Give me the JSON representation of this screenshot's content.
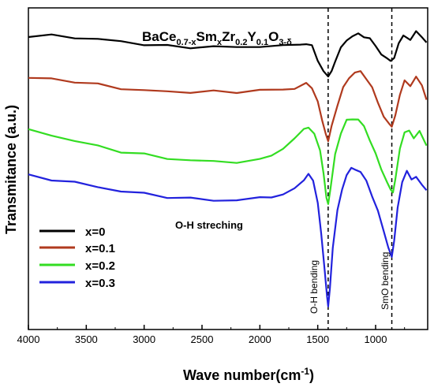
{
  "chart_data": {
    "type": "line",
    "title_main": "BaCe",
    "title_sub1": "0.7-x",
    "title_mid1": "Sm",
    "title_sub2": "x",
    "title_mid2": "Zr",
    "title_sub3": "0.2",
    "title_mid3": "Y",
    "title_sub4": "0.1",
    "title_mid4": "O",
    "title_sub5": "3-δ",
    "xlabel": "Wave number(cm",
    "xlabel_sup": "-1",
    "xlabel_end": ")",
    "ylabel": "Transmitance (a.u.)",
    "xlim": [
      4000,
      550
    ],
    "x_reversed": true,
    "yticks_shown": false,
    "xticks": [
      "4000",
      "3500",
      "3000",
      "2500",
      "2000",
      "1500",
      "1000"
    ],
    "xtick_values": [
      4000,
      3500,
      3000,
      2500,
      2000,
      1500,
      1000
    ],
    "legend_position": "left-middle",
    "annotations": [
      {
        "text": "O-H streching",
        "x": 2500
      },
      {
        "text": "O-H bending",
        "x": 1410
      },
      {
        "text": "SmO bending",
        "x": 860
      }
    ],
    "reference_lines": [
      1410,
      860
    ],
    "series": [
      {
        "name": "x=0",
        "color": "#000000",
        "points": [
          [
            4000,
            3.9
          ],
          [
            3800,
            3.9
          ],
          [
            3600,
            3.88
          ],
          [
            3400,
            3.85
          ],
          [
            3200,
            3.82
          ],
          [
            3000,
            3.78
          ],
          [
            2800,
            3.75
          ],
          [
            2600,
            3.74
          ],
          [
            2400,
            3.74
          ],
          [
            2200,
            3.74
          ],
          [
            2000,
            3.75
          ],
          [
            1800,
            3.75
          ],
          [
            1650,
            3.76
          ],
          [
            1600,
            3.8
          ],
          [
            1550,
            3.75
          ],
          [
            1500,
            3.55
          ],
          [
            1450,
            3.4
          ],
          [
            1410,
            3.3
          ],
          [
            1380,
            3.4
          ],
          [
            1350,
            3.55
          ],
          [
            1300,
            3.72
          ],
          [
            1250,
            3.84
          ],
          [
            1200,
            3.9
          ],
          [
            1150,
            3.92
          ],
          [
            1100,
            3.9
          ],
          [
            1050,
            3.85
          ],
          [
            1000,
            3.76
          ],
          [
            950,
            3.64
          ],
          [
            900,
            3.56
          ],
          [
            870,
            3.55
          ],
          [
            840,
            3.6
          ],
          [
            800,
            3.78
          ],
          [
            760,
            3.9
          ],
          [
            700,
            3.85
          ],
          [
            650,
            3.95
          ],
          [
            600,
            3.9
          ],
          [
            560,
            3.8
          ]
        ]
      },
      {
        "name": "x=0.1",
        "color": "#b03a1e",
        "points": [
          [
            4000,
            3.3
          ],
          [
            3800,
            3.28
          ],
          [
            3600,
            3.25
          ],
          [
            3400,
            3.2
          ],
          [
            3200,
            3.15
          ],
          [
            3000,
            3.12
          ],
          [
            2800,
            3.1
          ],
          [
            2600,
            3.1
          ],
          [
            2400,
            3.1
          ],
          [
            2200,
            3.1
          ],
          [
            2000,
            3.12
          ],
          [
            1800,
            3.13
          ],
          [
            1700,
            3.16
          ],
          [
            1600,
            3.24
          ],
          [
            1550,
            3.15
          ],
          [
            1500,
            2.95
          ],
          [
            1460,
            2.7
          ],
          [
            1430,
            2.5
          ],
          [
            1410,
            2.38
          ],
          [
            1380,
            2.6
          ],
          [
            1330,
            2.92
          ],
          [
            1280,
            3.15
          ],
          [
            1230,
            3.3
          ],
          [
            1180,
            3.38
          ],
          [
            1130,
            3.38
          ],
          [
            1080,
            3.3
          ],
          [
            1030,
            3.15
          ],
          [
            980,
            2.95
          ],
          [
            930,
            2.75
          ],
          [
            880,
            2.62
          ],
          [
            860,
            2.6
          ],
          [
            830,
            2.78
          ],
          [
            790,
            3.05
          ],
          [
            750,
            3.25
          ],
          [
            700,
            3.2
          ],
          [
            650,
            3.3
          ],
          [
            600,
            3.2
          ],
          [
            560,
            3.0
          ]
        ]
      },
      {
        "name": "x=0.2",
        "color": "#33dd22",
        "points": [
          [
            4000,
            2.55
          ],
          [
            3800,
            2.48
          ],
          [
            3600,
            2.4
          ],
          [
            3400,
            2.32
          ],
          [
            3200,
            2.25
          ],
          [
            3000,
            2.2
          ],
          [
            2800,
            2.15
          ],
          [
            2600,
            2.12
          ],
          [
            2400,
            2.1
          ],
          [
            2200,
            2.1
          ],
          [
            2000,
            2.12
          ],
          [
            1900,
            2.18
          ],
          [
            1800,
            2.3
          ],
          [
            1700,
            2.45
          ],
          [
            1620,
            2.55
          ],
          [
            1580,
            2.6
          ],
          [
            1530,
            2.5
          ],
          [
            1480,
            2.25
          ],
          [
            1450,
            1.95
          ],
          [
            1425,
            1.6
          ],
          [
            1410,
            1.5
          ],
          [
            1390,
            1.7
          ],
          [
            1350,
            2.2
          ],
          [
            1300,
            2.52
          ],
          [
            1250,
            2.68
          ],
          [
            1200,
            2.72
          ],
          [
            1150,
            2.7
          ],
          [
            1100,
            2.6
          ],
          [
            1050,
            2.42
          ],
          [
            1000,
            2.2
          ],
          [
            950,
            2.0
          ],
          [
            900,
            1.8
          ],
          [
            870,
            1.68
          ],
          [
            850,
            1.65
          ],
          [
            830,
            1.85
          ],
          [
            790,
            2.3
          ],
          [
            750,
            2.5
          ],
          [
            710,
            2.55
          ],
          [
            670,
            2.45
          ],
          [
            620,
            2.52
          ],
          [
            560,
            2.35
          ]
        ]
      },
      {
        "name": "x=0.3",
        "color": "#2222dd",
        "points": [
          [
            4000,
            1.9
          ],
          [
            3800,
            1.85
          ],
          [
            3600,
            1.8
          ],
          [
            3400,
            1.74
          ],
          [
            3200,
            1.68
          ],
          [
            3000,
            1.64
          ],
          [
            2800,
            1.6
          ],
          [
            2600,
            1.57
          ],
          [
            2400,
            1.55
          ],
          [
            2200,
            1.55
          ],
          [
            2000,
            1.58
          ],
          [
            1900,
            1.6
          ],
          [
            1800,
            1.65
          ],
          [
            1700,
            1.72
          ],
          [
            1620,
            1.82
          ],
          [
            1580,
            1.92
          ],
          [
            1540,
            1.85
          ],
          [
            1500,
            1.5
          ],
          [
            1470,
            1.05
          ],
          [
            1440,
            0.55
          ],
          [
            1420,
            0.2
          ],
          [
            1410,
            0.05
          ],
          [
            1395,
            0.3
          ],
          [
            1370,
            0.85
          ],
          [
            1330,
            1.4
          ],
          [
            1290,
            1.72
          ],
          [
            1250,
            1.9
          ],
          [
            1210,
            2.0
          ],
          [
            1170,
            2.0
          ],
          [
            1130,
            1.95
          ],
          [
            1080,
            1.82
          ],
          [
            1030,
            1.62
          ],
          [
            980,
            1.38
          ],
          [
            930,
            1.12
          ],
          [
            890,
            0.88
          ],
          [
            860,
            0.72
          ],
          [
            840,
            0.95
          ],
          [
            810,
            1.45
          ],
          [
            770,
            1.82
          ],
          [
            730,
            1.95
          ],
          [
            690,
            1.85
          ],
          [
            650,
            1.9
          ],
          [
            600,
            1.75
          ],
          [
            560,
            1.7
          ]
        ]
      }
    ]
  }
}
